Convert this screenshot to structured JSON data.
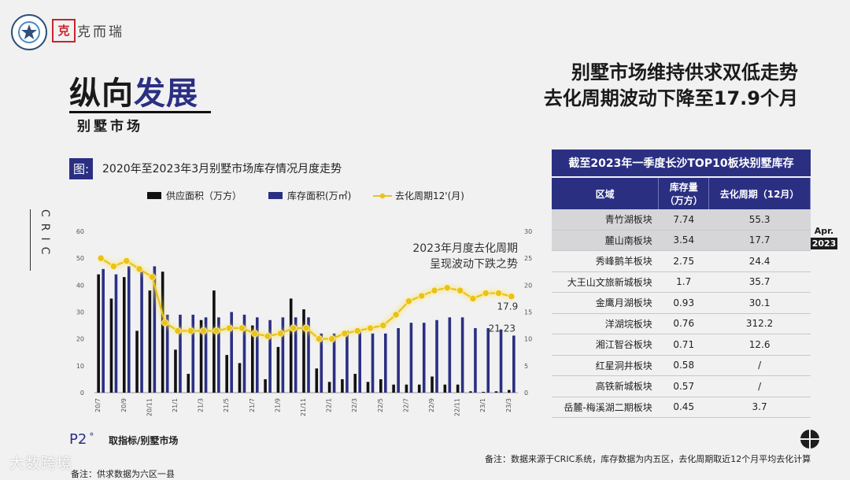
{
  "brand": {
    "seal_char": "克",
    "name": "克而瑞"
  },
  "page": {
    "title_part1": "纵向",
    "title_part2": "发展",
    "subtitle": "别墅市场",
    "headline_line1": "别墅市场维持供求双低走势",
    "headline_line2": "去化周期波动下降至17.9个月"
  },
  "figure": {
    "tag": "图:",
    "title": "2020年至2023年3月别墅市场库存情况月度走势",
    "side_label": "CRIC",
    "annotation_line1": "2023年月度去化周期",
    "annotation_line2": "呈现波动下跌之势"
  },
  "colors": {
    "supply": "#111111",
    "stock": "#2b2f82",
    "cycle": "#e9c21c",
    "header_bg": "#2b2f82"
  },
  "chart_data": {
    "type": "bar",
    "title": "2020年至2023年3月别墅市场库存情况月度走势",
    "x": [
      "20/7",
      "20/8",
      "20/9",
      "20/10",
      "20/11",
      "20/12",
      "21/1",
      "21/2",
      "21/3",
      "21/4",
      "21/5",
      "21/6",
      "21/7",
      "21/8",
      "21/9",
      "21/10",
      "21/11",
      "21/12",
      "22/1",
      "22/2",
      "22/3",
      "22/4",
      "22/5",
      "22/6",
      "22/7",
      "22/8",
      "22/9",
      "22/10",
      "22/11",
      "22/12",
      "23/1",
      "23/2",
      "23/3"
    ],
    "x_tick_labels": [
      "20/7",
      "20/9",
      "20/11",
      "21/1",
      "21/3",
      "21/5",
      "21/7",
      "21/9",
      "21/11",
      "22/1",
      "22/3",
      "22/5",
      "22/7",
      "22/9",
      "22/11",
      "23/1",
      "23/3"
    ],
    "ylim_left": [
      0,
      60
    ],
    "yticks_left": [
      0,
      10,
      20,
      30,
      40,
      50,
      60
    ],
    "ylim_right": [
      0,
      30
    ],
    "yticks_right": [
      0,
      5,
      10,
      15,
      20,
      25,
      30
    ],
    "series": [
      {
        "name": "供应面积（万方）",
        "type": "bar",
        "axis": "left",
        "values": [
          44,
          35,
          43,
          23,
          38,
          45,
          16,
          7,
          27,
          38,
          14,
          11,
          25,
          5,
          17,
          35,
          31,
          9,
          4,
          5,
          7,
          4,
          5,
          3,
          3,
          3,
          6,
          3,
          3,
          0.5,
          0.3,
          0.5,
          1
        ]
      },
      {
        "name": "库存面积(万㎡)",
        "type": "bar",
        "axis": "left",
        "values": [
          46,
          44,
          47,
          45,
          47,
          29,
          29,
          29,
          28,
          28,
          30,
          29,
          28,
          27,
          28,
          28,
          28,
          22,
          22,
          23,
          23,
          22,
          22,
          24,
          26,
          26,
          27,
          28,
          28,
          24,
          24,
          23.5,
          21.23
        ]
      },
      {
        "name": "去化周期12'(月)",
        "type": "line",
        "axis": "right",
        "values": [
          25,
          23.5,
          24.5,
          23,
          21.5,
          13,
          11.5,
          11.5,
          11.5,
          11.5,
          12,
          12,
          11,
          10.5,
          11,
          12,
          12,
          10,
          10,
          11,
          11.5,
          12,
          12.5,
          14.5,
          17,
          18,
          19,
          19.5,
          19,
          17.5,
          18.5,
          18.5,
          17.9
        ]
      }
    ],
    "data_labels": [
      "17.9",
      "21.23"
    ]
  },
  "table": {
    "title": "截至2023年一季度长沙TOP10板块别墅库存",
    "headers": [
      "区域",
      "库存量\n（万方）",
      "去化周期（12月）"
    ],
    "rows": [
      [
        "青竹湖板块",
        "7.74",
        "55.3"
      ],
      [
        "麓山南板块",
        "3.54",
        "17.7"
      ],
      [
        "秀峰鹅羊板块",
        "2.75",
        "24.4"
      ],
      [
        "大王山文旅新城板块",
        "1.7",
        "35.7"
      ],
      [
        "金鹰月湖板块",
        "0.93",
        "30.1"
      ],
      [
        "洋湖垸板块",
        "0.76",
        "312.2"
      ],
      [
        "湘江智谷板块",
        "0.71",
        "12.6"
      ],
      [
        "红星洞井板块",
        "0.58",
        "/"
      ],
      [
        "高铁新城板块",
        "0.57",
        "/"
      ],
      [
        "岳麓-梅溪湖二期板块",
        "0.45",
        "3.7"
      ]
    ]
  },
  "badge": {
    "month": "Apr.",
    "year": "2023"
  },
  "footer": {
    "page_no": "P2",
    "source_label": "取指标/别墅市场",
    "note_right": "备注：数据来源于CRIC系统，库存数据为内五区，去化周期取近12个月平均去化计算",
    "note_left": "备注：供求数据为六区一县",
    "watermark": "大数跨境"
  }
}
